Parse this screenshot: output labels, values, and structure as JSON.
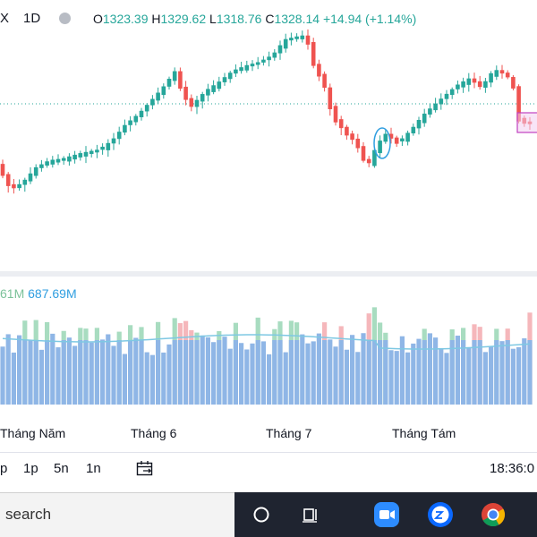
{
  "header": {
    "symbol": "X",
    "timeframe": "1D",
    "ohlc": {
      "open_label": "O",
      "open": "1323.39",
      "high_label": "H",
      "high": "1329.62",
      "low_label": "L",
      "low": "1318.76",
      "close_label": "C",
      "close": "1328.14",
      "change": "+14.94 (+1.14%)"
    }
  },
  "volume_legend": {
    "value_a": "61M",
    "value_b": "687.69M"
  },
  "time_axis": {
    "labels": [
      "Tháng Năm",
      "Tháng 6",
      "Tháng 7",
      "Tháng Tám"
    ]
  },
  "toolbar": {
    "ranges": [
      "p",
      "1p",
      "5n",
      "1n"
    ],
    "date_range_icon": "calendar-range-icon",
    "clock": "18:36:0"
  },
  "taskbar": {
    "search_placeholder": "search",
    "icons": [
      "cortana-circle-icon",
      "task-view-icon",
      "zoom-app-icon",
      "zalo-app-icon",
      "chrome-app-icon"
    ]
  },
  "colors": {
    "up": "#26a69a",
    "down": "#ef5350",
    "volume_up": "#a8dcc0",
    "volume_down": "#f5b7bb",
    "volume_bar": "#8fb6e6",
    "volume_ma": "#7ec8e3",
    "taskbar_bg": "#1f2430"
  },
  "chart_data": {
    "type": "candlestick",
    "x_axis_ticks": [
      "Tháng Năm",
      "Tháng 6",
      "Tháng 7",
      "Tháng Tám"
    ],
    "visible_last_bar": {
      "open": 1323.39,
      "high": 1329.62,
      "low": 1318.76,
      "close": 1328.14
    }
  }
}
